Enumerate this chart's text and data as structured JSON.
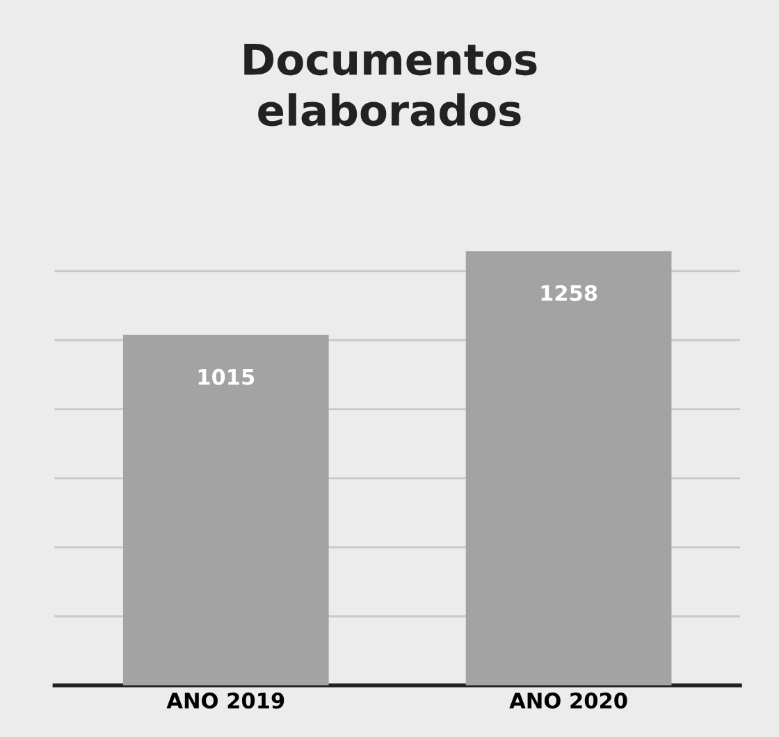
{
  "chart_data": {
    "type": "bar",
    "title": "Documentos\nelaborados",
    "categories": [
      "ANO 2019",
      "ANO 2020"
    ],
    "values": [
      1015,
      1258
    ],
    "color": "#a3a3a3",
    "yticks": [
      {
        "value": 0,
        "label": null
      },
      {
        "value": 200,
        "label": null
      },
      {
        "value": 400,
        "label": null
      },
      {
        "value": 600,
        "label": null
      },
      {
        "value": 800,
        "label": null
      },
      {
        "value": 1000,
        "label": null
      },
      {
        "value": 1200,
        "label": null
      }
    ],
    "tick_labels": "x",
    "grid": "y",
    "data_labels": true
  }
}
